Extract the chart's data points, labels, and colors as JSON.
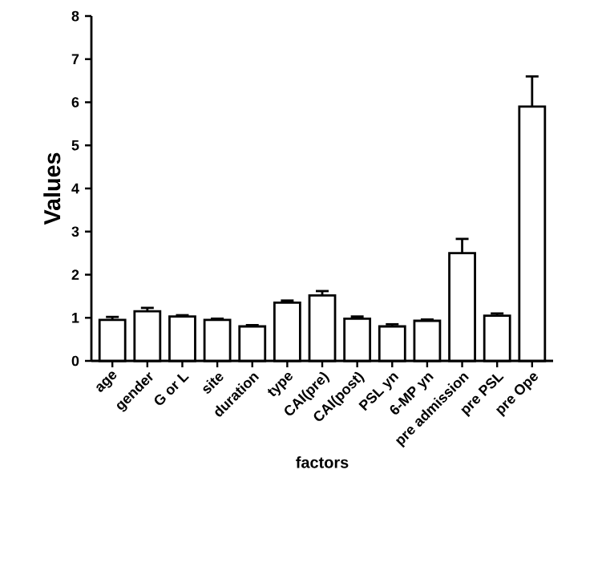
{
  "chart_data": {
    "type": "bar",
    "xlabel": "factors",
    "ylabel": "Values",
    "categories": [
      "age",
      "gender",
      "G or L",
      "site",
      "duration",
      "type",
      "CAI(pre)",
      "CAI(post)",
      "PSL yn",
      "6-MP yn",
      "pre admission",
      "pre PSL",
      "pre Ope"
    ],
    "values": [
      0.95,
      1.15,
      1.03,
      0.95,
      0.8,
      1.35,
      1.52,
      0.98,
      0.8,
      0.93,
      2.5,
      1.05,
      5.9
    ],
    "errors": [
      0.07,
      0.08,
      0.03,
      0.03,
      0.03,
      0.05,
      0.1,
      0.05,
      0.05,
      0.03,
      0.33,
      0.05,
      0.7
    ],
    "color": "#000000",
    "ylim": [
      0,
      8
    ],
    "yticks": [
      0,
      1,
      2,
      3,
      4,
      5,
      6,
      7,
      8
    ]
  }
}
